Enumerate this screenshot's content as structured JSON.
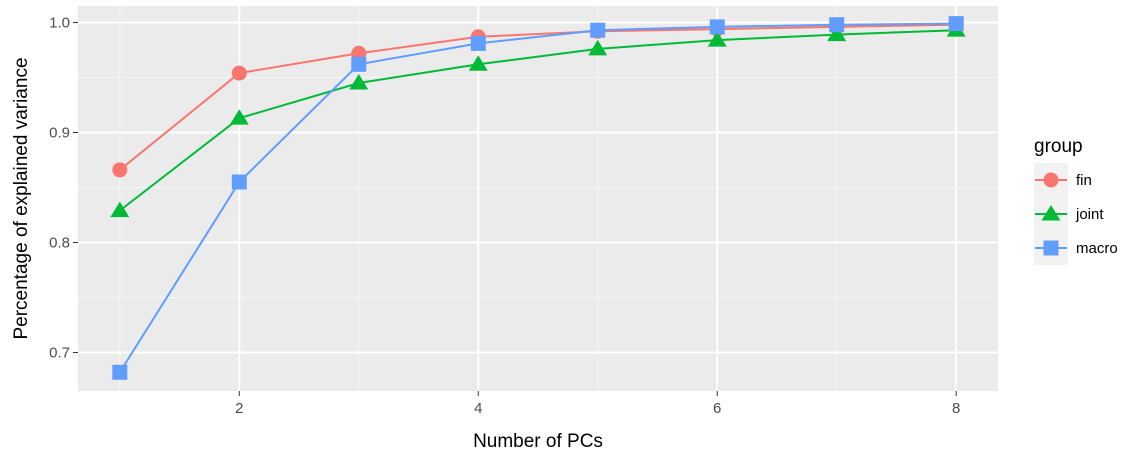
{
  "chart_data": {
    "type": "line",
    "xlabel": "Number of PCs",
    "ylabel": "Percentage of explained variance",
    "x": [
      1,
      2,
      3,
      4,
      5,
      6,
      7,
      8
    ],
    "xlim": [
      0.65,
      8.35
    ],
    "ylim": [
      0.665,
      1.015
    ],
    "xticks": [
      2,
      4,
      6,
      8
    ],
    "yticks": [
      0.7,
      0.8,
      0.9,
      1.0
    ],
    "xtick_labels": [
      "2",
      "4",
      "6",
      "8"
    ],
    "ytick_labels": [
      "0.7",
      "0.8",
      "0.9",
      "1.0"
    ],
    "grid": true,
    "legend_title": "group",
    "legend_position": "right",
    "series": [
      {
        "name": "fin",
        "color": "#F8766D",
        "marker": "circle",
        "values": [
          0.866,
          0.954,
          0.972,
          0.987,
          0.992,
          0.994,
          0.996,
          0.998
        ]
      },
      {
        "name": "joint",
        "color": "#00BA38",
        "marker": "triangle",
        "values": [
          0.829,
          0.913,
          0.945,
          0.962,
          0.976,
          0.984,
          0.989,
          0.993
        ]
      },
      {
        "name": "macro",
        "color": "#619CFF",
        "marker": "square",
        "values": [
          0.682,
          0.855,
          0.962,
          0.981,
          0.993,
          0.996,
          0.998,
          0.999
        ]
      }
    ]
  }
}
